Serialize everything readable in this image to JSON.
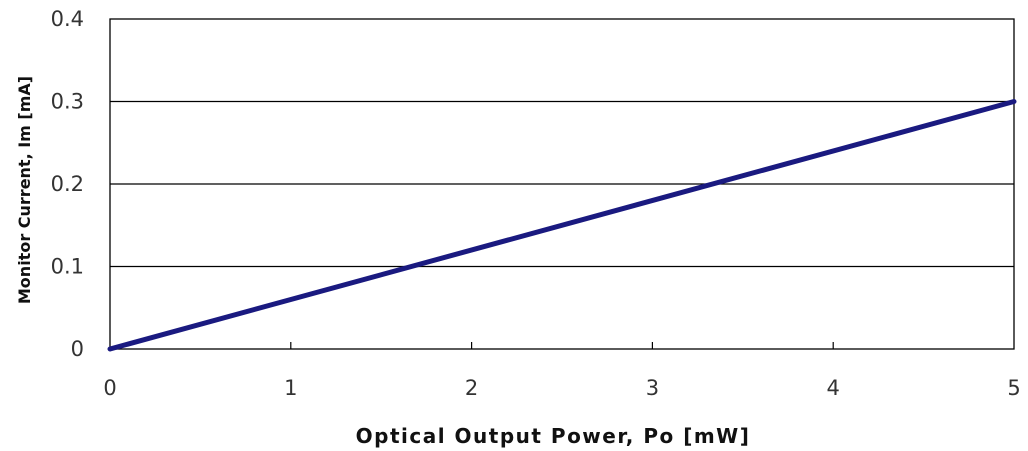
{
  "chart_data": {
    "type": "line",
    "title": "",
    "xlabel": "Optical Output Power, Po [mW]",
    "ylabel": "Monitor Current, Im [mA]",
    "xlim": [
      0,
      5
    ],
    "ylim": [
      0,
      0.4
    ],
    "x_ticks": [
      0,
      1,
      2,
      3,
      4,
      5
    ],
    "y_ticks": [
      0,
      0.1,
      0.2,
      0.3,
      0.4
    ],
    "x_tick_labels": [
      "0",
      "1",
      "2",
      "3",
      "4",
      "5"
    ],
    "y_tick_labels": [
      "0",
      "0.1",
      "0.2",
      "0.3",
      "0.4"
    ],
    "grid": "horizontal",
    "series": [
      {
        "x": [
          0,
          5
        ],
        "y": [
          0,
          0.3
        ],
        "color": "#1a1a80"
      }
    ]
  }
}
